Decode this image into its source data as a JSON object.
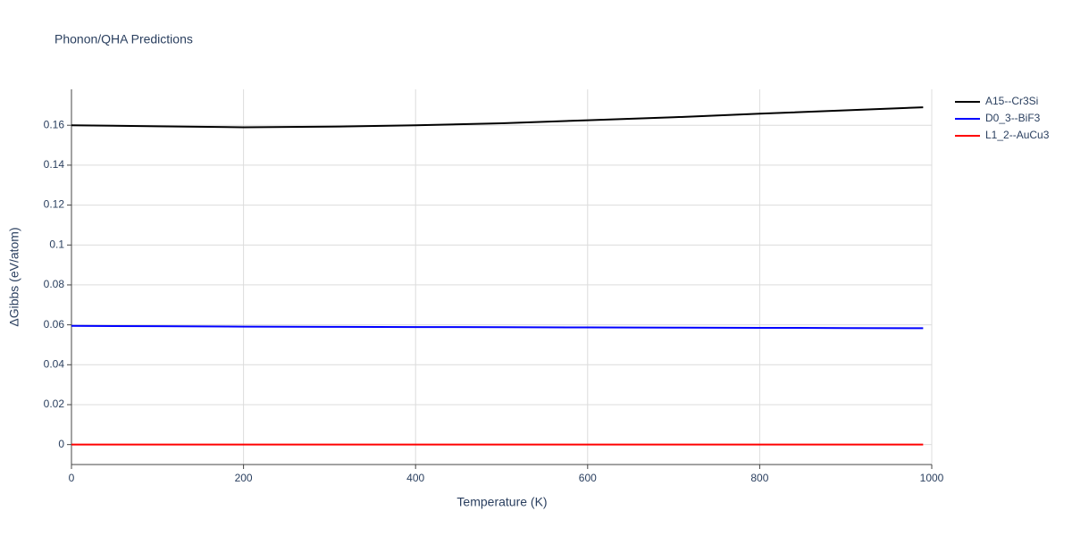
{
  "chart_data": {
    "type": "line",
    "title": "Phonon/QHA Predictions",
    "x_label": "Temperature (K)",
    "y_label": "ΔGibbs (eV/atom)",
    "x": [
      0,
      100,
      200,
      300,
      400,
      500,
      600,
      700,
      800,
      900,
      990
    ],
    "series": [
      {
        "name": "A15--Cr3Si",
        "color": "#000000",
        "values": [
          0.16,
          0.1595,
          0.159,
          0.1593,
          0.16,
          0.161,
          0.1625,
          0.164,
          0.1658,
          0.1675,
          0.169
        ]
      },
      {
        "name": "D0_3--BiF3",
        "color": "#0000ff",
        "values": [
          0.0595,
          0.0593,
          0.0591,
          0.059,
          0.0589,
          0.0588,
          0.0587,
          0.0586,
          0.0585,
          0.0584,
          0.0583
        ]
      },
      {
        "name": "L1_2--AuCu3",
        "color": "#ff0000",
        "values": [
          0,
          0,
          0,
          0,
          0,
          0,
          0,
          0,
          0,
          0,
          0
        ]
      }
    ],
    "xlim": [
      0,
      1000
    ],
    "xticks": [
      0,
      200,
      400,
      600,
      800,
      1000
    ],
    "ylim": [
      -0.01,
      0.178
    ],
    "yticks": [
      0,
      0.02,
      0.04,
      0.06,
      0.08,
      0.1,
      0.12,
      0.14,
      0.16
    ],
    "grid": true,
    "legend": "right"
  }
}
